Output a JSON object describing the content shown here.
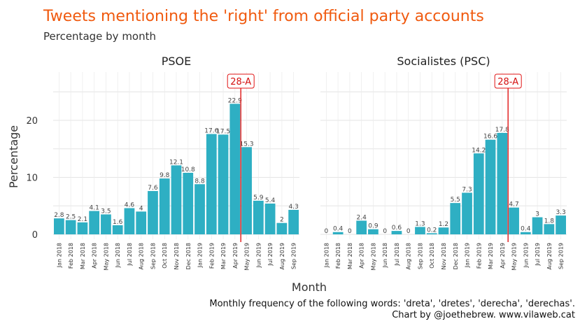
{
  "title": "Tweets mentioning the 'right' from official party accounts",
  "subtitle": "Percentage by month",
  "xlabel": "Month",
  "ylabel": "Percentage",
  "caption_line1": "Monthly frequency of the following words: 'dreta', 'dretes', 'derecha', 'derechas'.",
  "caption_line2": "Chart by @joethebrew. www.vilaweb.cat",
  "colors": {
    "bar": "#2eafc3",
    "title": "#f05a0f",
    "annotation": "#e01414"
  },
  "chart_data": [
    {
      "type": "bar",
      "facet": "PSOE",
      "categories": [
        "Jan 2018",
        "Feb 2018",
        "Mar 2018",
        "Apr 2018",
        "May 2018",
        "Jun 2018",
        "Jul 2018",
        "Aug 2018",
        "Sep 2018",
        "Oct 2018",
        "Nov 2018",
        "Dec 2018",
        "Jan 2019",
        "Feb 2019",
        "Mar 2019",
        "Apr 2019",
        "May 2019",
        "Jun 2019",
        "Jul 2019",
        "Aug 2019",
        "Sep 2019"
      ],
      "values": [
        2.8,
        2.5,
        2.1,
        4.1,
        3.5,
        1.6,
        4.6,
        4,
        7.6,
        9.8,
        12.1,
        10.8,
        8.8,
        17.6,
        17.5,
        22.9,
        15.3,
        5.9,
        5.4,
        2,
        4.3
      ],
      "labels": [
        "2.8",
        "2.5",
        "2.1",
        "4.1",
        "3.5",
        "1.6",
        "4.6",
        "4",
        "7.6",
        "9.8",
        "12.1",
        "10.8",
        "8.8",
        "17.6",
        "17.5",
        "22.9",
        "15.3",
        "5.9",
        "5.4",
        "2",
        "4.3"
      ],
      "ylim": [
        0,
        28
      ],
      "yticks": [
        0,
        10,
        20
      ],
      "annotation": {
        "label": "28-A",
        "between": [
          "Apr 2019",
          "May 2019"
        ]
      }
    },
    {
      "type": "bar",
      "facet": "Socialistes (PSC)",
      "categories": [
        "Jan 2018",
        "Feb 2018",
        "Mar 2018",
        "Apr 2018",
        "May 2018",
        "Jun 2018",
        "Jul 2018",
        "Aug 2018",
        "Sep 2018",
        "Oct 2018",
        "Nov 2018",
        "Dec 2018",
        "Jan 2019",
        "Feb 2019",
        "Mar 2019",
        "Apr 2019",
        "May 2019",
        "Jun 2019",
        "Jul 2019",
        "Aug 2019",
        "Sep 2019"
      ],
      "values": [
        0,
        0.4,
        0,
        2.4,
        0.9,
        0,
        0.6,
        0,
        1.3,
        0.2,
        1.2,
        5.5,
        7.3,
        14.2,
        16.6,
        17.8,
        4.7,
        0.4,
        3,
        1.8,
        3.3
      ],
      "labels": [
        "0",
        "0.4",
        "0",
        "2.4",
        "0.9",
        "0",
        "0.6",
        "0",
        "1.3",
        "0.2",
        "1.2",
        "5.5",
        "7.3",
        "14.2",
        "16.6",
        "17.8",
        "4.7",
        "0.4",
        "3",
        "1.8",
        "3.3"
      ],
      "ylim": [
        0,
        28
      ],
      "yticks": [
        0,
        10,
        20
      ],
      "annotation": {
        "label": "28-A",
        "between": [
          "Apr 2019",
          "May 2019"
        ]
      }
    }
  ]
}
